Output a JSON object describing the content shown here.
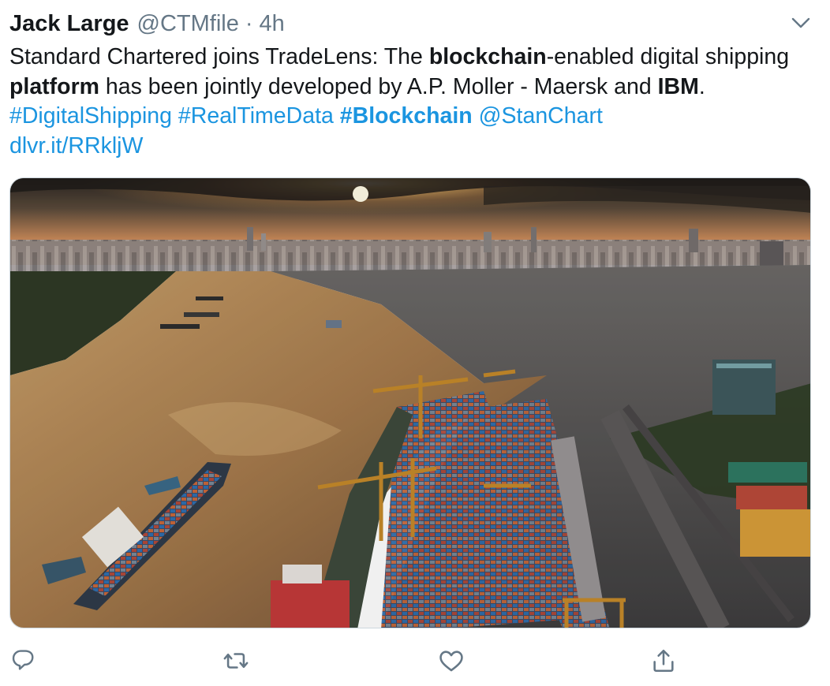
{
  "tweet": {
    "author": {
      "name": "Jack Large",
      "handle": "@CTMfile"
    },
    "separator": "·",
    "time": "4h",
    "text": {
      "p1": "Standard Chartered joins TradeLens: The ",
      "b1": "blockchain",
      "p2": "-enabled digital shipping ",
      "b2": "platform",
      "p3": " has been jointly developed by A.P. Moller - Maersk and ",
      "b3": "IBM",
      "p4": ". ",
      "hashtag1": "#DigitalShipping",
      "hashtag2": "#RealTimeData",
      "hashtag3": "#Blockchain",
      "mention": "@StanChart",
      "url": "dlvr.it/RRkljW"
    },
    "media": {
      "description_icon": "photo"
    },
    "actions": {
      "icons": [
        "reply-icon",
        "retweet-icon",
        "like-icon",
        "share-icon"
      ]
    }
  },
  "colors": {
    "link": "#1b95e0",
    "text": "#14171a",
    "muted": "#657786",
    "border": "#ccd6dd"
  }
}
